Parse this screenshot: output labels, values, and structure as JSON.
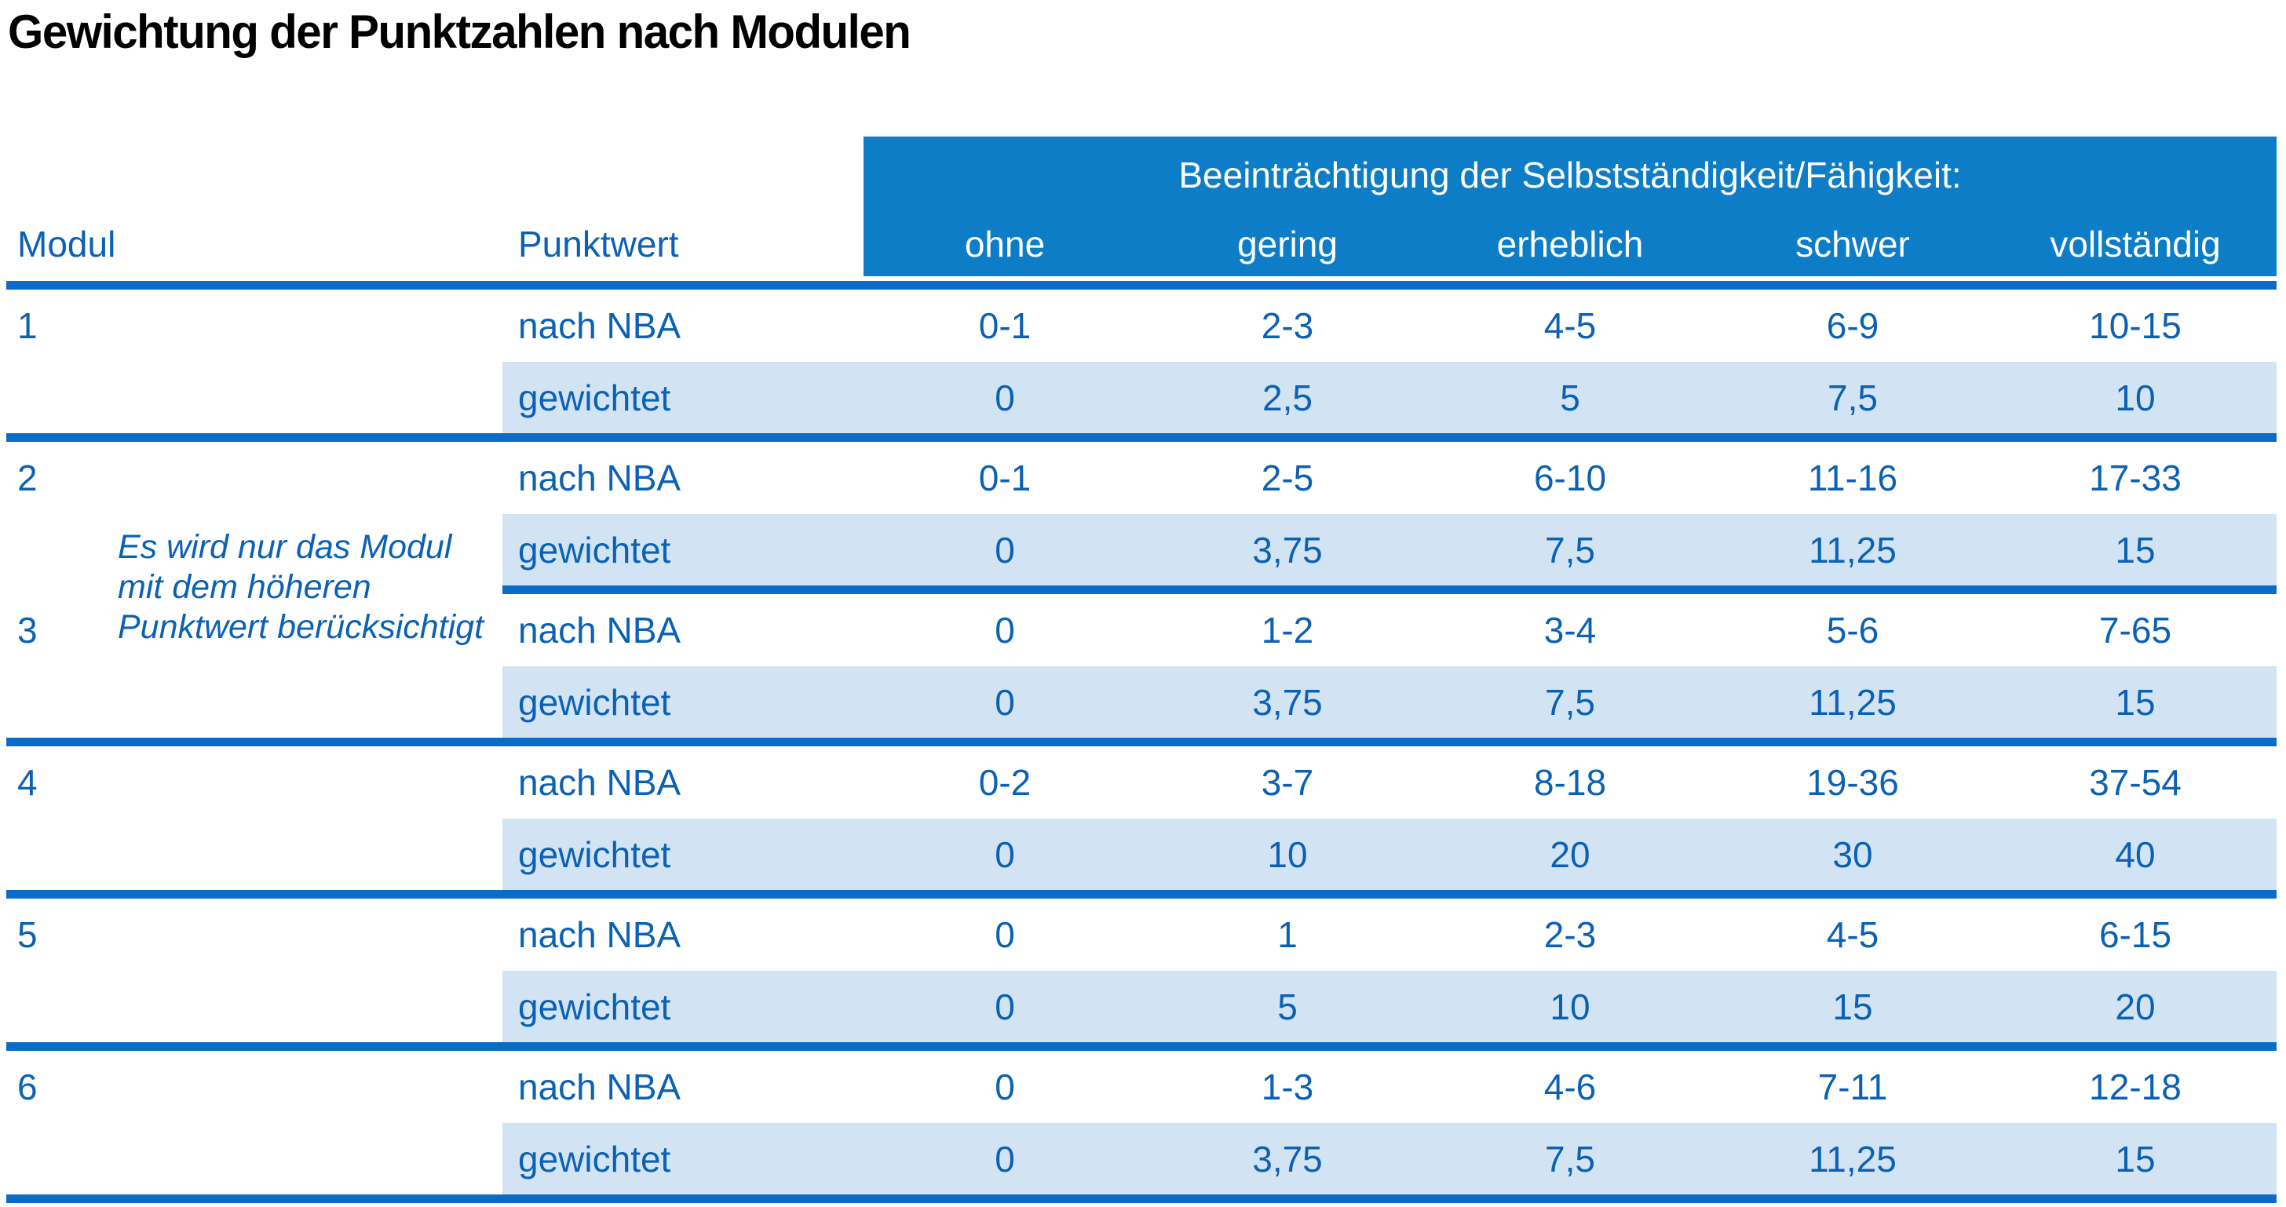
{
  "title": "Gewichtung der Punktzahlen nach Modulen",
  "colors": {
    "header_bg": "#0d7dc7",
    "rule_blue": "#0a6cc6",
    "weighted_row_bg": "#d2e4f3",
    "text_blue": "#0b61b4",
    "header_text": "#ffffff",
    "title_text": "#000000"
  },
  "table": {
    "col_headers": {
      "modul": "Modul",
      "punktwert": "Punktwert"
    },
    "impairment_header": "Beeinträchtigung der Selbstständigkeit/Fähigkeit:",
    "impairment_levels": [
      "ohne",
      "gering",
      "erheblich",
      "schwer",
      "vollständig"
    ],
    "row_labels": {
      "nba": "nach NBA",
      "weighted": "gewichtet"
    },
    "note": {
      "lines": [
        "Es wird nur das Modul",
        "mit dem höheren",
        "Punktwert berücksichtigt"
      ]
    },
    "modules": [
      {
        "id": "1",
        "nba": [
          "0-1",
          "2-3",
          "4-5",
          "6-9",
          "10-15"
        ],
        "weighted": [
          "0",
          "2,5",
          "5",
          "7,5",
          "10"
        ]
      },
      {
        "id": "2",
        "nba": [
          "0-1",
          "2-5",
          "6-10",
          "11-16",
          "17-33"
        ],
        "weighted": [
          "0",
          "3,75",
          "7,5",
          "11,25",
          "15"
        ]
      },
      {
        "id": "3",
        "nba": [
          "0",
          "1-2",
          "3-4",
          "5-6",
          "7-65"
        ],
        "weighted": [
          "0",
          "3,75",
          "7,5",
          "11,25",
          "15"
        ]
      },
      {
        "id": "4",
        "nba": [
          "0-2",
          "3-7",
          "8-18",
          "19-36",
          "37-54"
        ],
        "weighted": [
          "0",
          "10",
          "20",
          "30",
          "40"
        ]
      },
      {
        "id": "5",
        "nba": [
          "0",
          "1",
          "2-3",
          "4-5",
          "6-15"
        ],
        "weighted": [
          "0",
          "5",
          "10",
          "15",
          "20"
        ]
      },
      {
        "id": "6",
        "nba": [
          "0",
          "1-3",
          "4-6",
          "7-11",
          "12-18"
        ],
        "weighted": [
          "0",
          "3,75",
          "7,5",
          "11,25",
          "15"
        ]
      }
    ]
  }
}
